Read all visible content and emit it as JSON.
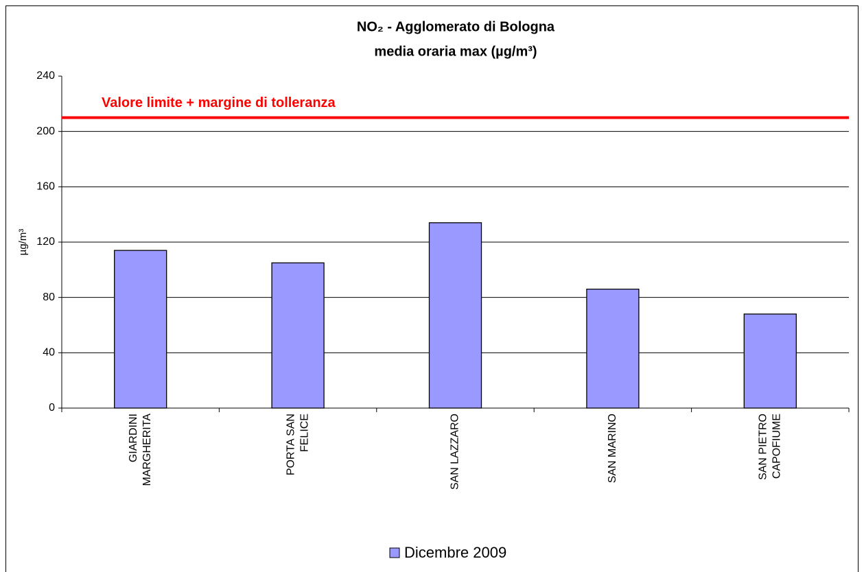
{
  "chart_data": {
    "type": "bar",
    "title": "NO₂ - Agglomerato di Bologna",
    "subtitle": "media oraria max  (µg/m³)",
    "y_label": "µg/m³",
    "categories": [
      [
        "GIARDINI",
        "MARGHERITA"
      ],
      [
        "PORTA SAN",
        "FELICE"
      ],
      [
        "SAN LAZZARO"
      ],
      [
        "SAN MARINO"
      ],
      [
        "SAN PIETRO",
        "CAPOFIUME"
      ]
    ],
    "series": [
      {
        "name": "Dicembre 2009",
        "color": "#9999ff",
        "values": [
          114,
          105,
          134,
          86,
          68
        ]
      }
    ],
    "reference_line": {
      "label": "Valore limite + margine di tolleranza",
      "value": 210,
      "color": "#ff0000"
    },
    "ylim": [
      0,
      240
    ],
    "yticks": [
      0,
      40,
      80,
      120,
      160,
      200,
      240
    ],
    "grid": true
  }
}
